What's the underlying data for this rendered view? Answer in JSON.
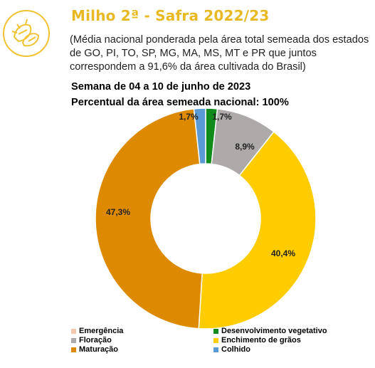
{
  "header": {
    "title": "Milho 2ª - Safra 2022/23",
    "subtitle": "(Média nacional ponderada pela área total semeada dos estados de GO, PI, TO, SP, MG, MA, MS, MT e PR que juntos correspondem a 91,6% da área cultivada do Brasil)",
    "week": "Semana de 04 a 10 de junho de 2023",
    "planted_percent": "Percentual da área semeada nacional: 100%"
  },
  "logo": {
    "icon": "corn-ears-icon",
    "color": "#f1c232"
  },
  "chart_data": {
    "type": "pie",
    "donut": true,
    "categories": [
      "Emergência",
      "Desenvolvimento vegetativo",
      "Floração",
      "Enchimento de grãos",
      "Maturação",
      "Colhido"
    ],
    "values": [
      0.0,
      1.7,
      8.9,
      40.4,
      47.3,
      1.7
    ],
    "labels": [
      "",
      "1,7%",
      "8,9%",
      "40,4%",
      "47,3%",
      "1,7%"
    ],
    "colors": [
      "#f4c7b0",
      "#108b1c",
      "#aeaaaa",
      "#ffcc00",
      "#de8a00",
      "#5b9bd5"
    ],
    "legend_position": "bottom"
  }
}
